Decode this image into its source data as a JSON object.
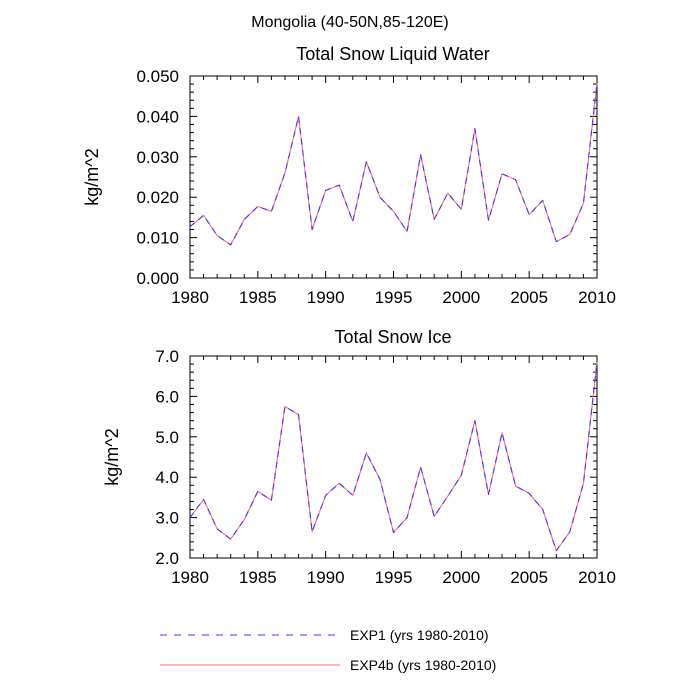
{
  "figure": {
    "title": "Mongolia (40-50N,85-120E)"
  },
  "legend": [
    {
      "label": "EXP1 (yrs 1980-2010)",
      "color": "#3a3af5",
      "dash": "dashed"
    },
    {
      "label": "EXP4b (yrs 1980-2010)",
      "color": "#ff6b7a",
      "dash": "solid"
    }
  ],
  "chart_data": [
    {
      "type": "line",
      "title": "Total Snow Liquid Water",
      "ylabel": "kg/m^2",
      "xlabel": "",
      "xlim": [
        1980,
        2010
      ],
      "ylim": [
        0.0,
        0.05
      ],
      "xticks": [
        "1980",
        "1985",
        "1990",
        "1995",
        "2000",
        "2005",
        "2010"
      ],
      "yticks": [
        "0.000",
        "0.010",
        "0.020",
        "0.030",
        "0.040",
        "0.050"
      ],
      "x": [
        1980,
        1981,
        1982,
        1983,
        1984,
        1985,
        1986,
        1987,
        1988,
        1989,
        1990,
        1991,
        1992,
        1993,
        1994,
        1995,
        1996,
        1997,
        1998,
        1999,
        2000,
        2001,
        2002,
        2003,
        2004,
        2005,
        2006,
        2007,
        2008,
        2009,
        2010
      ],
      "series": [
        {
          "name": "EXP1 (yrs 1980-2010)",
          "values": [
            0.0127,
            0.0155,
            0.0105,
            0.0082,
            0.0145,
            0.0177,
            0.0165,
            0.026,
            0.04,
            0.012,
            0.0217,
            0.023,
            0.014,
            0.0288,
            0.02,
            0.0165,
            0.0115,
            0.0305,
            0.0145,
            0.021,
            0.017,
            0.037,
            0.0143,
            0.0258,
            0.0243,
            0.0157,
            0.0192,
            0.009,
            0.0108,
            0.0185,
            0.0482
          ]
        },
        {
          "name": "EXP4b (yrs 1980-2010)",
          "values": [
            0.0127,
            0.0155,
            0.0105,
            0.0082,
            0.0145,
            0.0177,
            0.0165,
            0.026,
            0.04,
            0.012,
            0.0217,
            0.023,
            0.014,
            0.0288,
            0.02,
            0.0165,
            0.0115,
            0.0305,
            0.0145,
            0.021,
            0.017,
            0.037,
            0.0143,
            0.0258,
            0.0243,
            0.0157,
            0.0192,
            0.009,
            0.0108,
            0.0185,
            0.0482
          ]
        }
      ]
    },
    {
      "type": "line",
      "title": "Total Snow Ice",
      "ylabel": "kg/m^2",
      "xlabel": "",
      "xlim": [
        1980,
        2010
      ],
      "ylim": [
        2.0,
        7.0
      ],
      "xticks": [
        "1980",
        "1985",
        "1990",
        "1995",
        "2000",
        "2005",
        "2010"
      ],
      "yticks": [
        "2.0",
        "3.0",
        "4.0",
        "5.0",
        "6.0",
        "7.0"
      ],
      "x": [
        1980,
        1981,
        1982,
        1983,
        1984,
        1985,
        1986,
        1987,
        1988,
        1989,
        1990,
        1991,
        1992,
        1993,
        1994,
        1995,
        1996,
        1997,
        1998,
        1999,
        2000,
        2001,
        2002,
        2003,
        2004,
        2005,
        2006,
        2007,
        2008,
        2009,
        2010
      ],
      "series": [
        {
          "name": "EXP1 (yrs 1980-2010)",
          "values": [
            3.0,
            3.45,
            2.72,
            2.47,
            2.95,
            3.65,
            3.43,
            5.75,
            5.55,
            2.65,
            3.55,
            3.85,
            3.55,
            4.6,
            3.95,
            2.63,
            3.0,
            4.25,
            3.03,
            3.53,
            4.05,
            5.4,
            3.57,
            5.1,
            3.78,
            3.6,
            3.2,
            2.18,
            2.65,
            3.85,
            6.85
          ]
        },
        {
          "name": "EXP4b (yrs 1980-2010)",
          "values": [
            3.0,
            3.45,
            2.72,
            2.47,
            2.95,
            3.65,
            3.43,
            5.75,
            5.55,
            2.65,
            3.55,
            3.85,
            3.55,
            4.6,
            3.95,
            2.63,
            3.0,
            4.25,
            3.03,
            3.53,
            4.05,
            5.4,
            3.57,
            5.1,
            3.78,
            3.6,
            3.2,
            2.18,
            2.65,
            3.85,
            6.85
          ]
        }
      ]
    }
  ]
}
